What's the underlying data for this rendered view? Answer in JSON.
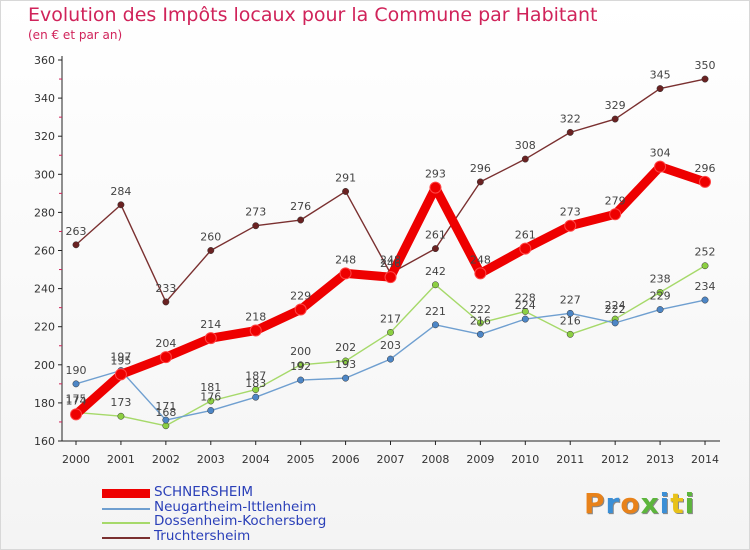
{
  "title": "Evolution des Impôts locaux pour la Commune par Habitant",
  "subtitle": "(en € et par an)",
  "logo": {
    "text": "Proxiti",
    "colors": [
      "#e8821a",
      "#3b8fd6",
      "#e8821a",
      "#5cb53c",
      "#3b8fd6",
      "#e8c21a",
      "#5cb53c"
    ]
  },
  "chart_data": {
    "type": "line",
    "x": [
      "2000",
      "2001",
      "2002",
      "2003",
      "2004",
      "2005",
      "2006",
      "2007",
      "2008",
      "2009",
      "2010",
      "2011",
      "2012",
      "2013",
      "2014"
    ],
    "ylim": [
      160,
      360
    ],
    "yticks": [
      160,
      180,
      200,
      220,
      240,
      260,
      280,
      300,
      320,
      340,
      360
    ],
    "grid": false,
    "legend_position": "bottom-left",
    "series": [
      {
        "name": "SCHNERSHEIM",
        "color": "#ee0000",
        "style": "thick",
        "values": [
          174,
          195,
          204,
          214,
          218,
          229,
          248,
          246,
          293,
          248,
          261,
          273,
          279,
          304,
          296
        ]
      },
      {
        "name": "Neugartheim-Ittlenheim",
        "color": "#6f9fd0",
        "marker": "#4d86c6",
        "values": [
          190,
          197,
          171,
          176,
          183,
          192,
          193,
          203,
          221,
          216,
          224,
          227,
          222,
          229,
          234
        ]
      },
      {
        "name": "Dossenheim-Kochersberg",
        "color": "#a6d96a",
        "marker": "#8ccf42",
        "values": [
          175,
          173,
          168,
          181,
          187,
          200,
          202,
          217,
          242,
          222,
          228,
          216,
          224,
          238,
          252
        ]
      },
      {
        "name": "Truchtersheim",
        "color": "#7a3030",
        "marker": "#6a2222",
        "values": [
          263,
          284,
          233,
          260,
          273,
          276,
          291,
          248,
          261,
          296,
          308,
          322,
          329,
          345,
          350
        ]
      }
    ]
  }
}
